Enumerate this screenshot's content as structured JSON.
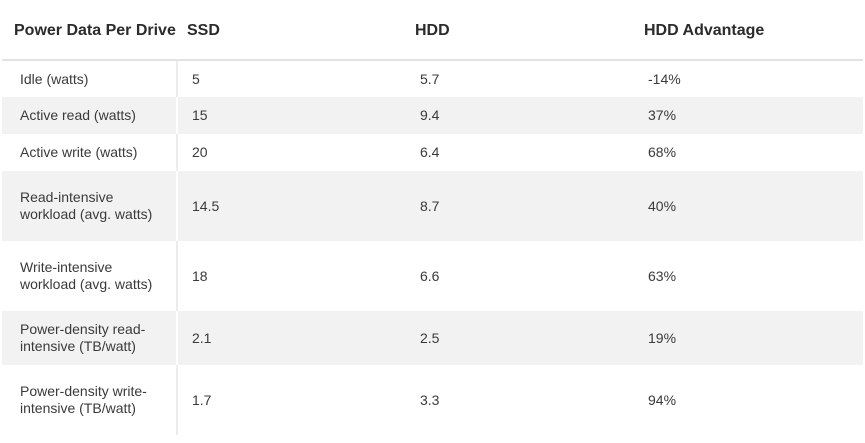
{
  "table": {
    "headers": [
      "Power Data Per Drive",
      "SSD",
      "HDD",
      "HDD Advantage"
    ],
    "rows": [
      [
        "Idle (watts)",
        "5",
        "5.7",
        "-14%"
      ],
      [
        "Active read (watts)",
        "15",
        "9.4",
        "37%"
      ],
      [
        "Active write (watts)",
        "20",
        "6.4",
        "68%"
      ],
      [
        "Read-intensive workload (avg. watts)",
        "14.5",
        "8.7",
        "40%"
      ],
      [
        "Write-intensive workload (avg. watts)",
        "18",
        "6.6",
        "63%"
      ],
      [
        "Power-density read-intensive (TB/watt)",
        "2.1",
        "2.5",
        "19%"
      ],
      [
        "Power-density write-intensive (TB/watt)",
        "1.7",
        "3.3",
        "94%"
      ]
    ]
  },
  "colors": {
    "stripe": "#f2f2f2",
    "header_text": "#2b2b2b",
    "body_text": "#3a3a3a",
    "divider": "#e2e2e2"
  }
}
